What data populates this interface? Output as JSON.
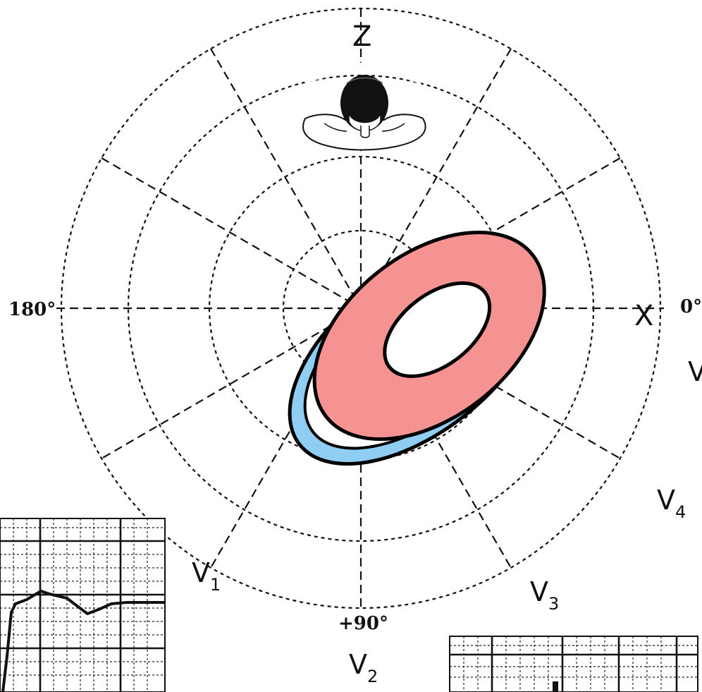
{
  "axes": {
    "z_label": "Z",
    "x_label": "X",
    "angle_0": "0°",
    "angle_90": "+90°",
    "angle_180": "180°"
  },
  "leads": [
    {
      "letter": "V",
      "sub": "1"
    },
    {
      "letter": "V",
      "sub": "2"
    },
    {
      "letter": "V",
      "sub": "3"
    },
    {
      "letter": "V",
      "sub": "4"
    },
    {
      "letter": "V",
      "sub": ""
    }
  ],
  "colors": {
    "ring_fill": "#f59393",
    "rim_fill": "#8fcdf3",
    "outline": "#000000",
    "grid": "#111111",
    "ecg_grid": "#222222"
  },
  "icons": {
    "head": "head-top-view-icon"
  }
}
